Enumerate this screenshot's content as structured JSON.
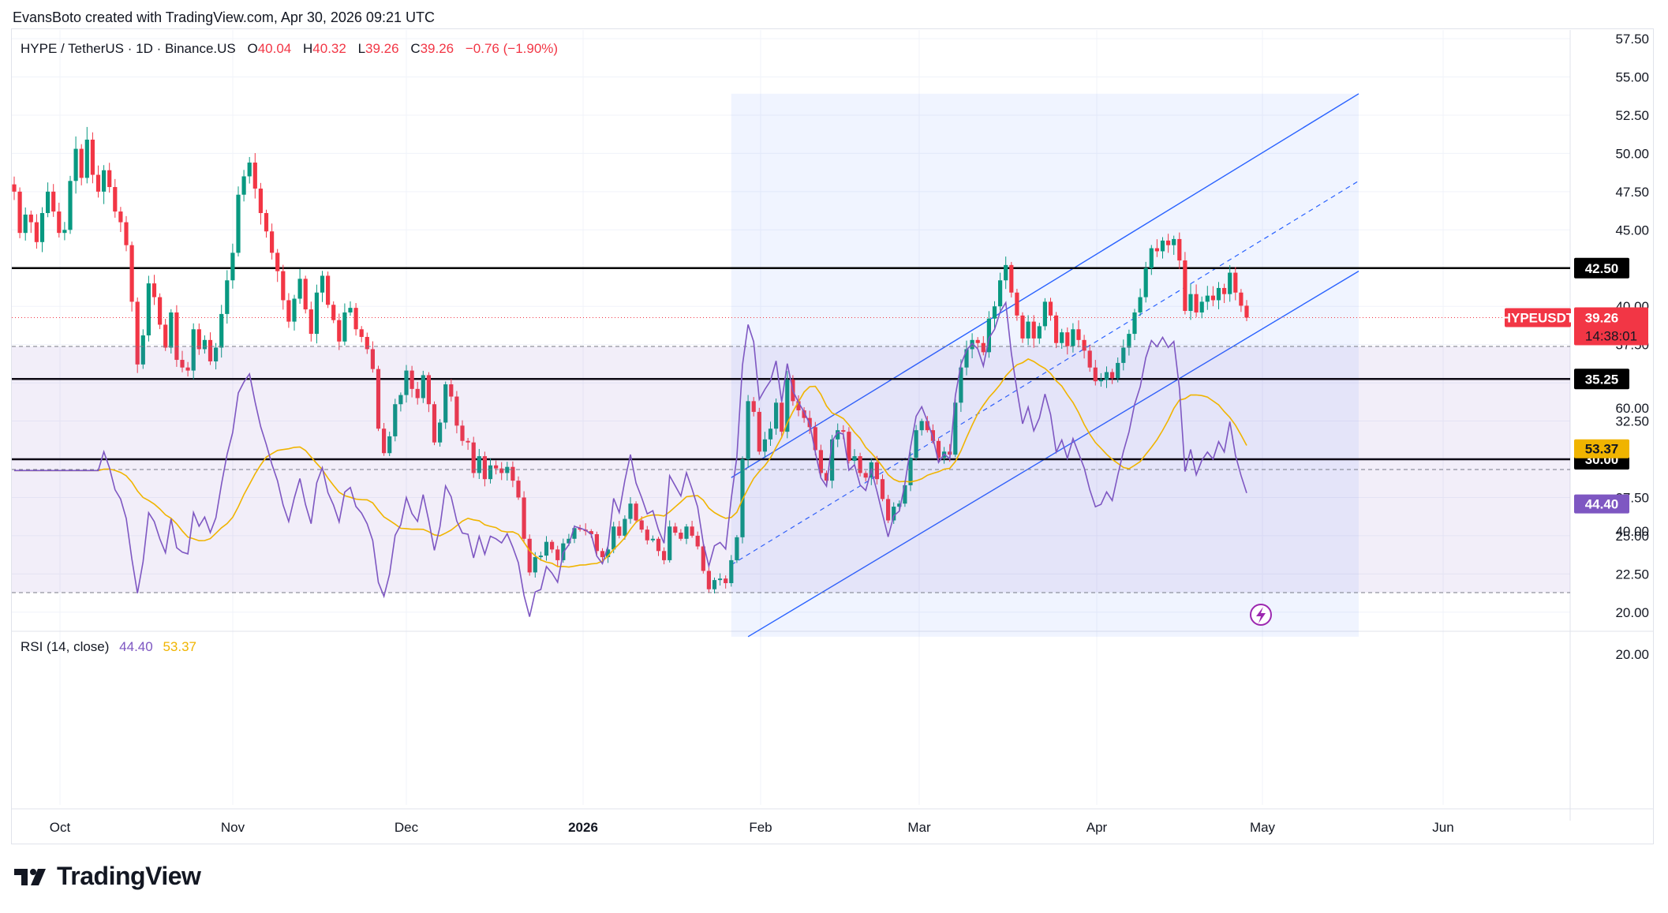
{
  "caption": "EvansBoto created with TradingView.com, Apr 30, 2026 09:21 UTC",
  "legend": {
    "symbol": "HYPE / TetherUS · 1D · Binance.US",
    "open_label": "O",
    "open": "40.04",
    "high_label": "H",
    "high": "40.32",
    "low_label": "L",
    "low": "39.26",
    "close_label": "C",
    "close": "39.26",
    "change": "−0.76 (−1.90%)"
  },
  "rsi_legend": {
    "title": "RSI (14, close)",
    "rsi": "44.40",
    "ma": "53.37"
  },
  "brand": "TradingView",
  "price_tag": {
    "symbol": "HYPEUSDT",
    "price": "39.26",
    "countdown": "14:38:01"
  },
  "colors": {
    "up": "#089981",
    "down": "#f23645",
    "channel": "#2962ff",
    "rsi": "#7e57c2",
    "rsi_ma": "#f0b400",
    "level": "#000000"
  },
  "chart_data": {
    "type": "candlestick",
    "symbol": "HYPE / TetherUS",
    "interval": "1D",
    "exchange": "Binance.US",
    "x_axis_labels": [
      "Oct",
      "Nov",
      "Dec",
      "2026",
      "Feb",
      "Mar",
      "Apr",
      "May",
      "Jun"
    ],
    "y_axis_ticks": [
      "57.50",
      "55.00",
      "52.50",
      "50.00",
      "47.50",
      "45.00",
      "40.00",
      "37.50",
      "32.50",
      "27.50",
      "25.00",
      "22.50",
      "20.00"
    ],
    "ylim": [
      18.4,
      58.5
    ],
    "horizontal_levels": [
      42.5,
      35.25,
      30.0
    ],
    "last_price": 39.26,
    "ohlc_last": {
      "open": 40.04,
      "high": 40.32,
      "low": 39.26,
      "close": 39.26,
      "change": -0.76,
      "change_pct": -1.9
    },
    "closes": [
      47.5,
      44.8,
      46.0,
      45.5,
      44.2,
      46.1,
      47.5,
      46.2,
      44.8,
      45.0,
      48.2,
      50.3,
      48.4,
      50.9,
      48.6,
      47.5,
      48.9,
      47.8,
      46.2,
      45.5,
      44.0,
      40.3,
      36.2,
      38.1,
      41.5,
      40.6,
      38.8,
      37.3,
      39.6,
      36.5,
      36.0,
      35.8,
      38.5,
      37.2,
      37.8,
      36.4,
      37.3,
      39.5,
      41.7,
      43.5,
      47.3,
      48.5,
      49.4,
      47.7,
      46.1,
      44.9,
      43.5,
      42.3,
      40.4,
      39.0,
      40.5,
      41.8,
      39.8,
      38.2,
      40.9,
      42.0,
      40.1,
      39.1,
      37.7,
      39.6,
      39.9,
      38.5,
      38.0,
      37.2,
      35.9,
      32.0,
      30.4,
      31.5,
      33.6,
      34.2,
      35.8,
      34.6,
      34.0,
      35.5,
      33.6,
      31.1,
      32.4,
      34.9,
      34.1,
      32.2,
      31.2,
      31.1,
      29.1,
      30.2,
      28.7,
      29.6,
      29.4,
      29.1,
      29.5,
      28.6,
      27.5,
      24.8,
      22.6,
      23.6,
      23.7,
      24.6,
      24.1,
      23.4,
      24.5,
      24.8,
      25.5,
      25.4,
      25.3,
      25.1,
      24.0,
      23.6,
      24.1,
      25.6,
      25.0,
      26.1,
      27.1,
      26.0,
      25.4,
      24.7,
      24.8,
      24.0,
      23.4,
      25.6,
      25.2,
      24.8,
      25.6,
      25.0,
      24.3,
      22.7,
      21.5,
      22.1,
      22.2,
      21.9,
      23.4,
      24.9,
      30.0,
      33.8,
      33.1,
      30.5,
      31.3,
      32.0,
      33.7,
      31.8,
      35.2,
      33.8,
      33.2,
      32.7,
      32.1,
      30.6,
      29.1,
      28.6,
      31.3,
      31.9,
      31.8,
      29.9,
      30.2,
      29.1,
      28.8,
      29.8,
      28.7,
      27.4,
      26.0,
      26.9,
      27.1,
      28.3,
      30.1,
      31.9,
      32.5,
      31.9,
      31.2,
      30.1,
      30.5,
      30.3,
      33.7,
      36.0,
      37.2,
      37.8,
      37.6,
      37.0,
      39.2,
      40.0,
      41.7,
      42.7,
      40.9,
      39.4,
      37.9,
      39.0,
      37.9,
      38.7,
      40.3,
      39.4,
      37.6,
      38.3,
      37.4,
      38.5,
      37.8,
      37.1,
      36.0,
      35.1,
      35.2,
      35.7,
      35.3,
      36.3,
      37.3,
      38.2,
      39.6,
      40.6,
      42.5,
      43.8,
      43.6,
      44.3,
      44.0,
      44.4,
      43.0,
      39.7,
      40.8,
      39.6,
      40.3,
      40.7,
      40.4,
      41.2,
      40.8,
      42.2,
      40.9,
      40.04,
      39.26
    ],
    "channel": {
      "upper": {
        "start": {
          "date": "2026-01-15",
          "price": 28.8
        },
        "end": {
          "date": "2026-05-07",
          "price": 53.9
        }
      },
      "middle": {
        "start": {
          "date": "2026-01-15",
          "price": 23.1
        },
        "end": {
          "date": "2026-05-07",
          "price": 48.2
        }
      },
      "lower": {
        "start": {
          "date": "2026-01-18",
          "price": 18.4
        },
        "end": {
          "date": "2026-05-07",
          "price": 42.3
        }
      }
    },
    "rsi": {
      "period": 14,
      "y_axis_ticks": [
        "60.00",
        "40.00",
        "20.00"
      ],
      "bands": [
        70,
        50,
        30
      ],
      "last": 44.4,
      "ma_last": 53.37
    }
  }
}
